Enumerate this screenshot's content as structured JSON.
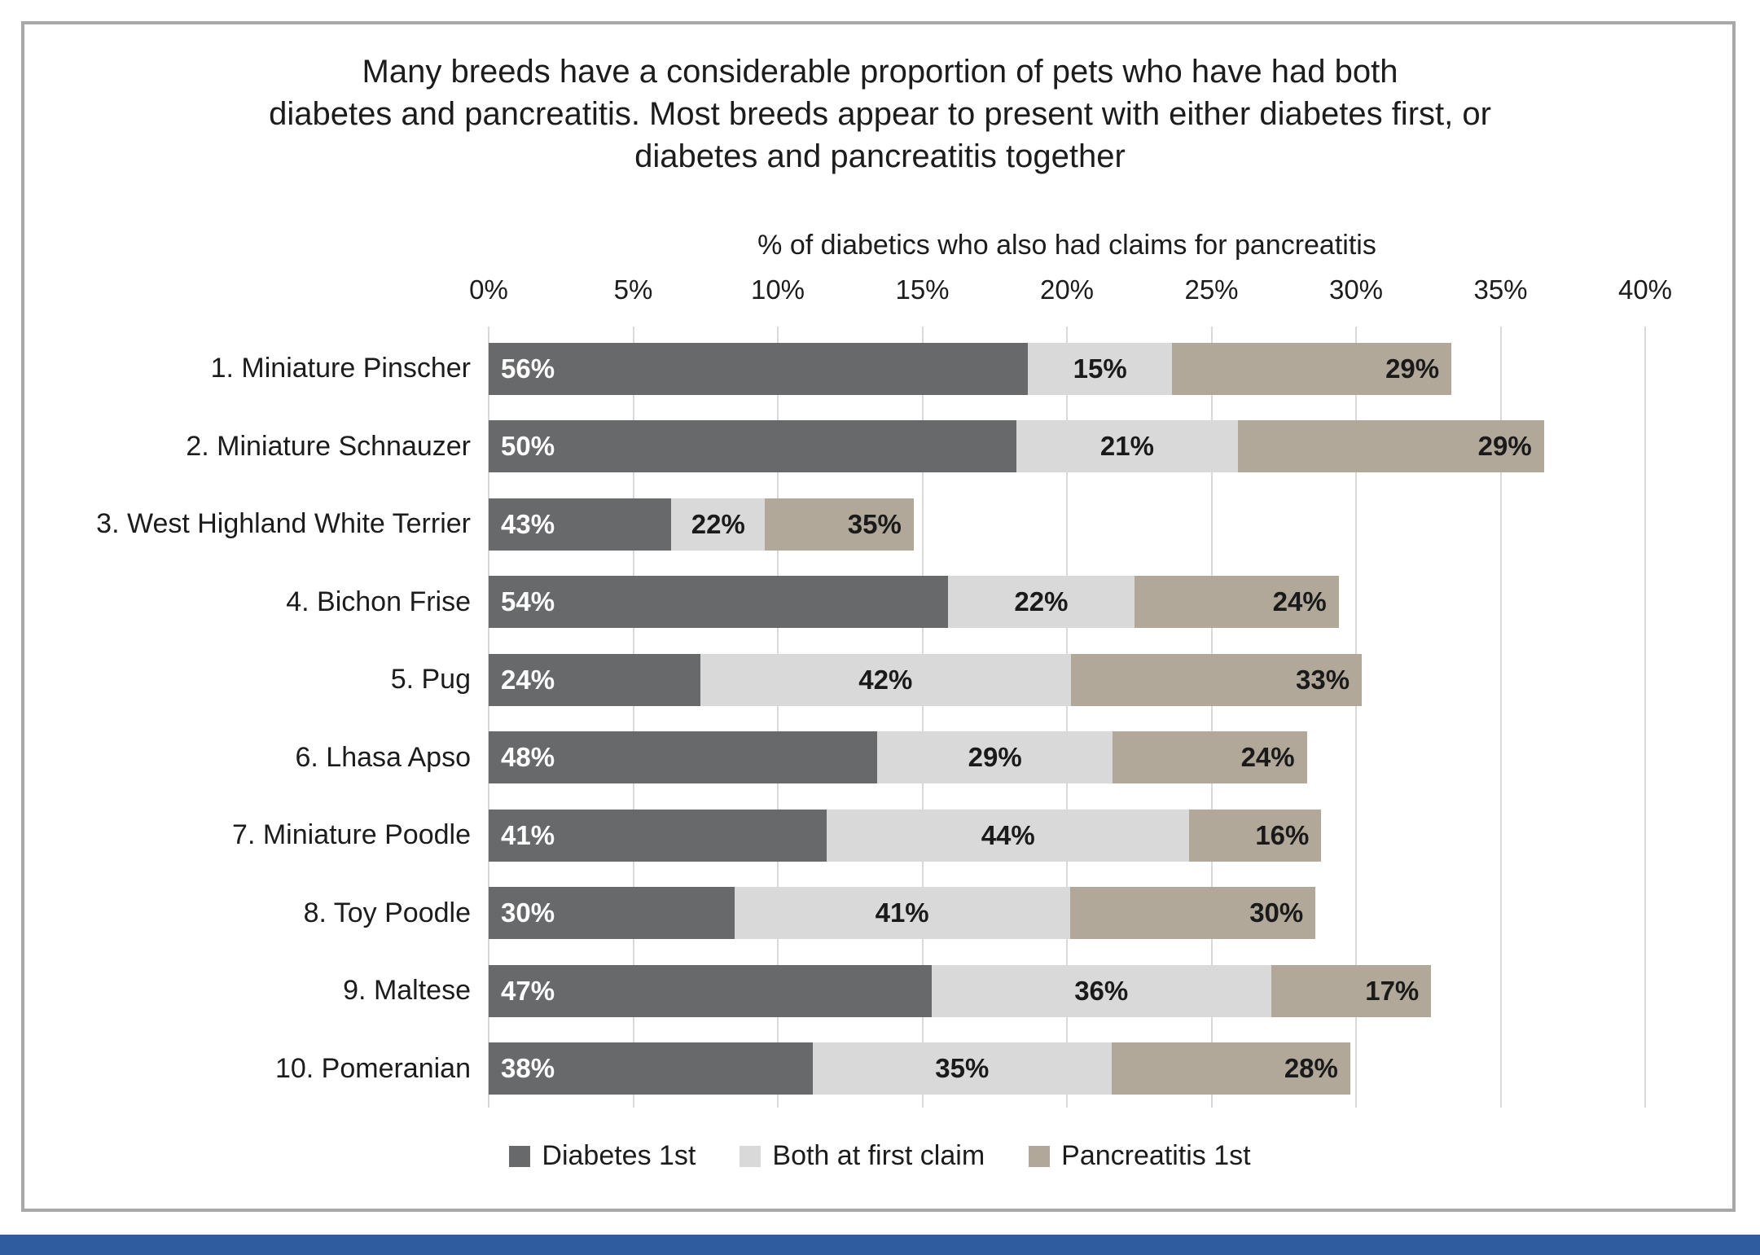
{
  "chart_data": {
    "type": "bar",
    "subtype": "horizontal-stacked",
    "title_lines": [
      "Many breeds have a considerable proportion of pets who have had both",
      "diabetes and pancreatitis. Most breeds appear to present with either diabetes first, or",
      "diabetes and pancreatitis together"
    ],
    "axis_title": "% of diabetics who also had claims for pancreatitis",
    "x_ticks": [
      "0%",
      "5%",
      "10%",
      "15%",
      "20%",
      "25%",
      "30%",
      "35%",
      "40%"
    ],
    "x_tick_step": 5,
    "x_max": 40,
    "grid": true,
    "legend_position": "bottom",
    "series": [
      {
        "name": "Diabetes 1st",
        "color": "#68696b"
      },
      {
        "name": "Both at first claim",
        "color": "#d9d9d9"
      },
      {
        "name": "Pancreatitis 1st",
        "color": "#b1a89a"
      }
    ],
    "rows": [
      {
        "label": "1. Miniature Pinscher",
        "segment_pcts": [
          56,
          15,
          29
        ],
        "total_pct_of_diabetics": 33.3
      },
      {
        "label": "2. Miniature Schnauzer",
        "segment_pcts": [
          50,
          21,
          29
        ],
        "total_pct_of_diabetics": 36.5
      },
      {
        "label": "3. West Highland White Terrier",
        "segment_pcts": [
          43,
          22,
          35
        ],
        "total_pct_of_diabetics": 14.7
      },
      {
        "label": "4. Bichon Frise",
        "segment_pcts": [
          54,
          22,
          24
        ],
        "total_pct_of_diabetics": 29.4
      },
      {
        "label": "5. Pug",
        "segment_pcts": [
          24,
          42,
          33
        ],
        "total_pct_of_diabetics": 30.2
      },
      {
        "label": "6. Lhasa Apso",
        "segment_pcts": [
          48,
          29,
          24
        ],
        "total_pct_of_diabetics": 28.3
      },
      {
        "label": "7. Miniature Poodle",
        "segment_pcts": [
          41,
          44,
          16
        ],
        "total_pct_of_diabetics": 28.8
      },
      {
        "label": "8. Toy Poodle",
        "segment_pcts": [
          30,
          41,
          30
        ],
        "total_pct_of_diabetics": 28.6
      },
      {
        "label": "9. Maltese",
        "segment_pcts": [
          47,
          36,
          17
        ],
        "total_pct_of_diabetics": 32.6
      },
      {
        "label": "10. Pomeranian",
        "segment_pcts": [
          38,
          35,
          28
        ],
        "total_pct_of_diabetics": 29.8
      }
    ],
    "accent_bar_color": "#2e5c9e",
    "border_color": "#a8a8a8",
    "gridline_color": "#d9d9d9"
  }
}
